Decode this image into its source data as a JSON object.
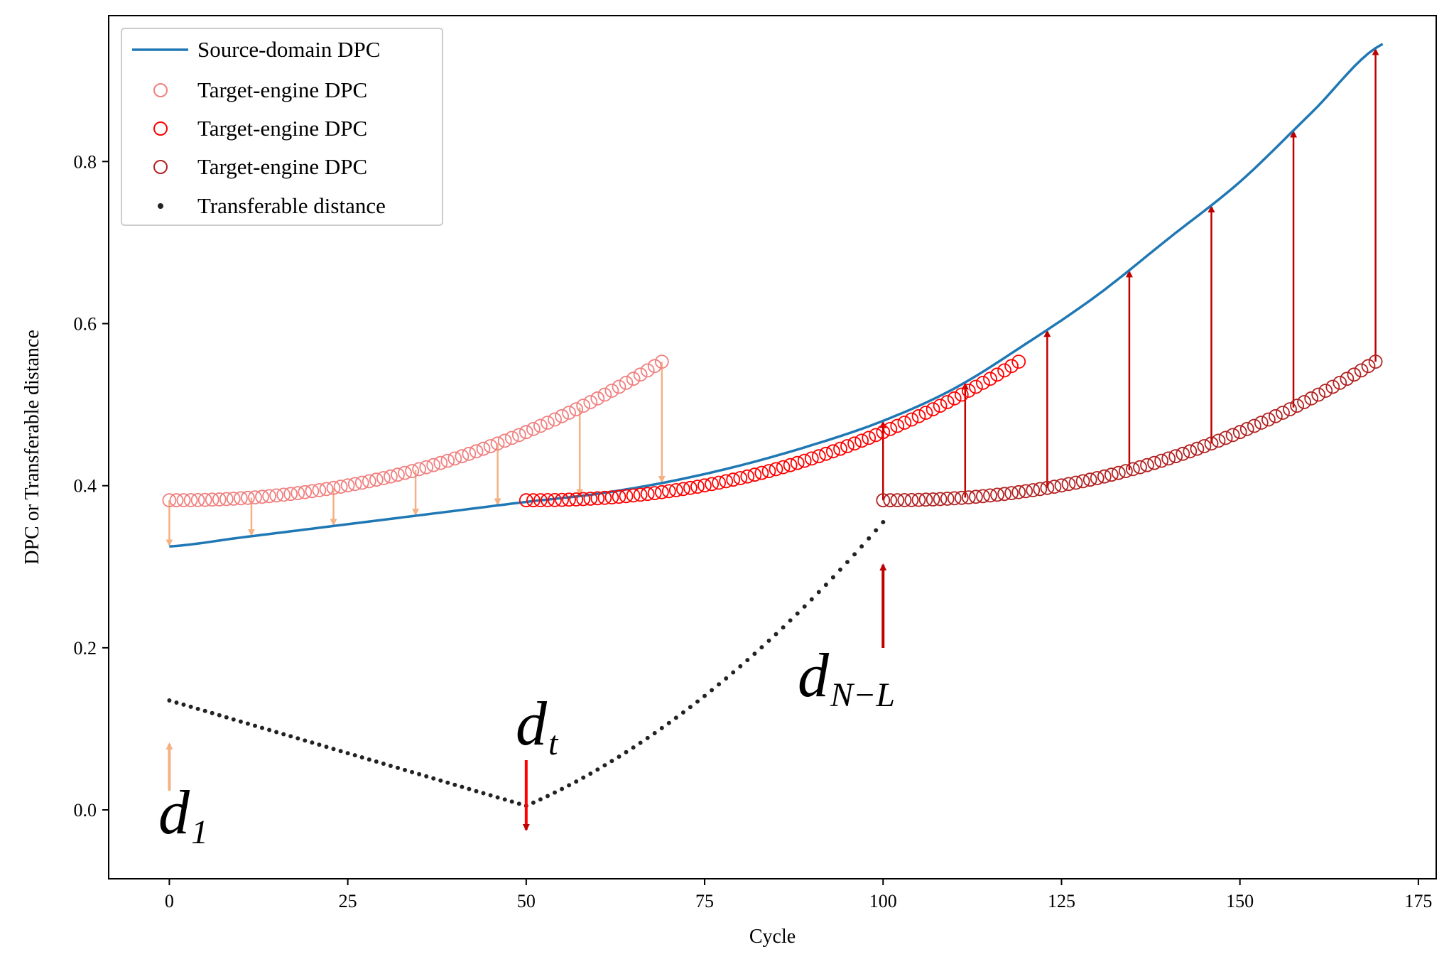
{
  "chart_data": {
    "type": "line",
    "xlabel": "Cycle",
    "ylabel": "DPC or Transferable distance",
    "xlim": [
      -8.5,
      177.5
    ],
    "ylim": [
      -0.085,
      0.98
    ],
    "xticks": [
      0,
      25,
      50,
      75,
      100,
      125,
      150,
      175
    ],
    "xtick_labels": [
      "0",
      "25",
      "50",
      "75",
      "100",
      "125",
      "150",
      "175"
    ],
    "yticks": [
      0.0,
      0.2,
      0.4,
      0.6,
      0.8
    ],
    "ytick_labels": [
      "0.0",
      "0.2",
      "0.4",
      "0.6",
      "0.8"
    ],
    "legend_position": "top-left",
    "legend": [
      {
        "label": "Source-domain DPC",
        "marker": "line",
        "color": "#1f77b4"
      },
      {
        "label": "Target-engine DPC",
        "marker": "circle",
        "color": "#f08080"
      },
      {
        "label": "Target-engine DPC",
        "marker": "circle",
        "color": "#ff0000"
      },
      {
        "label": "Target-engine DPC",
        "marker": "circle",
        "color": "#b22222"
      },
      {
        "label": "Transferable distance",
        "marker": "dot",
        "color": "#222222"
      }
    ],
    "source_curve": {
      "name": "Source-domain DPC",
      "color": "#1f77b4",
      "x": [
        0,
        10,
        20,
        30,
        40,
        50,
        60,
        70,
        80,
        90,
        100,
        110,
        120,
        130,
        140,
        150,
        160,
        170
      ],
      "y": [
        0.325,
        0.336,
        0.347,
        0.358,
        0.369,
        0.38,
        0.39,
        0.405,
        0.425,
        0.45,
        0.48,
        0.52,
        0.575,
        0.635,
        0.705,
        0.775,
        0.86,
        0.945
      ]
    },
    "target_series": [
      {
        "name": "Target-engine DPC",
        "color": "#f08080",
        "x_start": 0,
        "x_end": 69,
        "y_start": 0.382,
        "y_end": 0.553
      },
      {
        "name": "Target-engine DPC",
        "color": "#ff0000",
        "x_start": 50,
        "x_end": 119,
        "y_start": 0.382,
        "y_end": 0.553
      },
      {
        "name": "Target-engine DPC",
        "color": "#b22222",
        "x_start": 100,
        "x_end": 169,
        "y_start": 0.382,
        "y_end": 0.553
      }
    ],
    "transferable_distance": {
      "name": "Transferable distance",
      "color": "#222222",
      "x_range": [
        0,
        100
      ],
      "start": 0.135,
      "min_x": 50,
      "min": 0.005,
      "end": 0.355
    },
    "down_arrows": {
      "color": "#f4b183",
      "x": [
        0,
        11.5,
        23,
        34.5,
        46,
        57.5,
        69
      ]
    },
    "up_arrows": {
      "color": "#c00000",
      "x": [
        100,
        111.5,
        123,
        134.5,
        146,
        157.5,
        169
      ]
    },
    "annotations": [
      {
        "main": "d",
        "sub": "1",
        "x": 0,
        "arrow_color": "#f4b183",
        "direction": "up"
      },
      {
        "main": "d",
        "sub": "t",
        "x": 50,
        "arrow_color": "#ff0000",
        "direction": "down"
      },
      {
        "main": "d",
        "sub": "N−L",
        "x": 100,
        "arrow_color": "#c00000",
        "direction": "up"
      }
    ]
  }
}
